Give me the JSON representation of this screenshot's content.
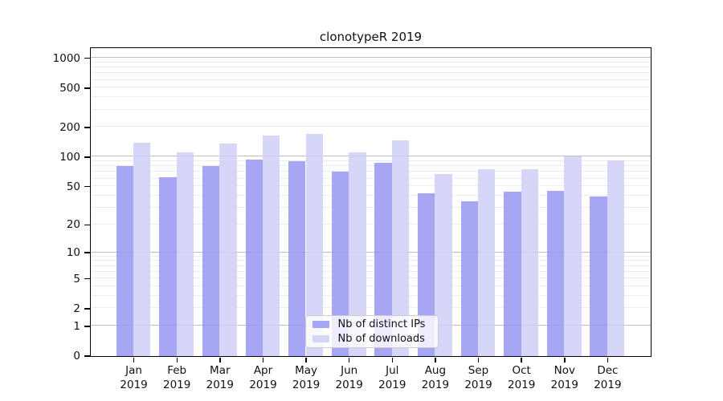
{
  "chart_data": {
    "type": "bar",
    "title": "clonotypeR 2019",
    "months": [
      "Jan",
      "Feb",
      "Mar",
      "Apr",
      "May",
      "Jun",
      "Jul",
      "Aug",
      "Sep",
      "Oct",
      "Nov",
      "Dec"
    ],
    "year_label": "2019",
    "series": [
      {
        "name": "Nb of distinct IPs",
        "color": "#9797f3",
        "values": [
          81,
          62,
          81,
          93,
          90,
          70,
          87,
          42,
          35,
          44,
          45,
          39
        ]
      },
      {
        "name": "Nb of downloads",
        "color": "#cfcff7",
        "values": [
          140,
          110,
          137,
          165,
          172,
          110,
          146,
          67,
          75,
          75,
          100,
          92
        ]
      }
    ],
    "bar_alpha": 0.85,
    "yscale": "log1p",
    "yticks": [
      0,
      1,
      2,
      5,
      10,
      20,
      50,
      100,
      200,
      500,
      1000
    ],
    "ylim": [
      0,
      1265
    ],
    "xlim": [
      -1,
      12
    ],
    "grid": {
      "major_ticks": [
        1,
        10,
        100,
        1000
      ],
      "major_color": "#bdbdbd",
      "minor_color": "#ededed"
    },
    "legend_position": "lower center"
  }
}
